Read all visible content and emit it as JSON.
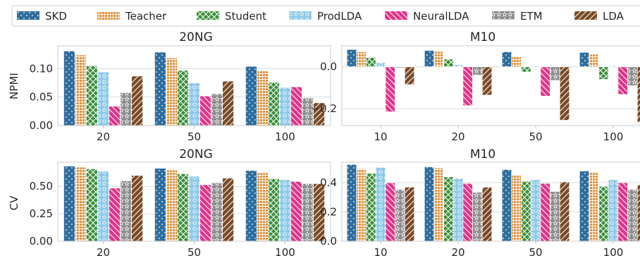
{
  "legend": [
    {
      "name": "SKD",
      "color": "#2e6e9e",
      "pattern": "dots"
    },
    {
      "name": "Teacher",
      "color": "#e1913b",
      "pattern": "grid"
    },
    {
      "name": "Student",
      "color": "#3a8f3a",
      "pattern": "cross"
    },
    {
      "name": "ProdLDA",
      "color": "#8ec9e8",
      "pattern": "circles"
    },
    {
      "name": "NeuralLDA",
      "color": "#e0348a",
      "pattern": "backslash"
    },
    {
      "name": "ETM",
      "color": "#8c8c8c",
      "pattern": "stars"
    },
    {
      "name": "LDA",
      "color": "#7a4a25",
      "pattern": "slash"
    }
  ],
  "chart_data": [
    {
      "type": "bar",
      "title": "20NG",
      "ylabel": "NPMI",
      "categories": [
        "20",
        "50",
        "100"
      ],
      "ylim": [
        0,
        0.14
      ],
      "yticks": [
        0.0,
        0.05,
        0.1
      ],
      "ytick_labels": [
        "0.00",
        "0.05",
        "0.10"
      ],
      "series": [
        {
          "name": "SKD",
          "values": [
            0.131,
            0.129,
            0.104
          ]
        },
        {
          "name": "Teacher",
          "values": [
            0.124,
            0.119,
            0.097
          ]
        },
        {
          "name": "Student",
          "values": [
            0.105,
            0.097,
            0.076
          ]
        },
        {
          "name": "ProdLDA",
          "values": [
            0.094,
            0.075,
            0.067
          ]
        },
        {
          "name": "NeuralLDA",
          "values": [
            0.034,
            0.052,
            0.068
          ]
        },
        {
          "name": "ETM",
          "values": [
            0.058,
            0.056,
            0.049
          ]
        },
        {
          "name": "LDA",
          "values": [
            0.087,
            0.078,
            0.04
          ]
        }
      ],
      "grid": true
    },
    {
      "type": "bar",
      "title": "M10",
      "ylabel": "",
      "categories": [
        "10",
        "20",
        "50",
        "100"
      ],
      "ylim": [
        -0.28,
        0.1
      ],
      "yticks": [
        -0.2,
        0.0
      ],
      "ytick_labels": [
        "−0.2",
        "0.0"
      ],
      "series": [
        {
          "name": "SKD",
          "values": [
            0.083,
            0.078,
            0.072,
            0.069
          ]
        },
        {
          "name": "Teacher",
          "values": [
            0.072,
            0.074,
            0.05,
            0.06
          ]
        },
        {
          "name": "Student",
          "values": [
            0.045,
            0.037,
            -0.025,
            -0.06
          ]
        },
        {
          "name": "ProdLDA",
          "values": [
            0.02,
            0.01,
            0.005,
            0.005
          ]
        },
        {
          "name": "NeuralLDA",
          "values": [
            -0.215,
            -0.185,
            -0.14,
            -0.132
          ]
        },
        {
          "name": "ETM",
          "values": [
            -0.005,
            -0.04,
            -0.065,
            -0.09
          ]
        },
        {
          "name": "LDA",
          "values": [
            -0.085,
            -0.135,
            -0.255,
            -0.265
          ]
        }
      ],
      "grid": true
    },
    {
      "type": "bar",
      "title": "20NG",
      "ylabel": "CV",
      "categories": [
        "20",
        "50",
        "100"
      ],
      "ylim": [
        0,
        0.72
      ],
      "yticks": [
        0.0,
        0.25,
        0.5
      ],
      "ytick_labels": [
        "0.00",
        "0.25",
        "0.50"
      ],
      "series": [
        {
          "name": "SKD",
          "values": [
            0.685,
            0.665,
            0.645
          ]
        },
        {
          "name": "Teacher",
          "values": [
            0.675,
            0.65,
            0.625
          ]
        },
        {
          "name": "Student",
          "values": [
            0.66,
            0.615,
            0.57
          ]
        },
        {
          "name": "ProdLDA",
          "values": [
            0.64,
            0.595,
            0.56
          ]
        },
        {
          "name": "NeuralLDA",
          "values": [
            0.485,
            0.515,
            0.545
          ]
        },
        {
          "name": "ETM",
          "values": [
            0.55,
            0.535,
            0.525
          ]
        },
        {
          "name": "LDA",
          "values": [
            0.6,
            0.575,
            0.525
          ]
        }
      ],
      "grid": true
    },
    {
      "type": "bar",
      "title": "M10",
      "ylabel": "",
      "categories": [
        "10",
        "20",
        "50",
        "100"
      ],
      "ylim": [
        0,
        0.54
      ],
      "yticks": [
        0.0,
        0.2,
        0.4
      ],
      "ytick_labels": [
        "0.0",
        "0.2",
        "0.4"
      ],
      "series": [
        {
          "name": "SKD",
          "values": [
            0.525,
            0.508,
            0.49,
            0.48
          ]
        },
        {
          "name": "Teacher",
          "values": [
            0.495,
            0.5,
            0.455,
            0.47
          ]
        },
        {
          "name": "Student",
          "values": [
            0.465,
            0.44,
            0.41,
            0.375
          ]
        },
        {
          "name": "ProdLDA",
          "values": [
            0.505,
            0.43,
            0.42,
            0.42
          ]
        },
        {
          "name": "NeuralLDA",
          "values": [
            0.4,
            0.395,
            0.395,
            0.4
          ]
        },
        {
          "name": "ETM",
          "values": [
            0.355,
            0.335,
            0.34,
            0.355
          ]
        },
        {
          "name": "LDA",
          "values": [
            0.37,
            0.37,
            0.405,
            0.385
          ]
        }
      ],
      "grid": true
    }
  ]
}
